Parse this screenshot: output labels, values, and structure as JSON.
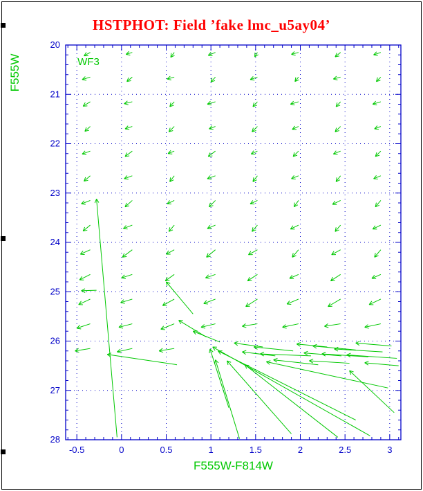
{
  "window": {
    "title": "HSTPHOT: Field ’fake lmc_u5ay04’",
    "title_color": "#ff0000"
  },
  "chart_data": {
    "type": "scatter",
    "subtype": "quiver-vector-field",
    "title": "HSTPHOT: Field ’fake lmc_u5ay04’",
    "xlabel": "F555W-F814W",
    "ylabel": "F555W",
    "annotation": {
      "text": "WF3",
      "x": -0.5,
      "y": 20.35
    },
    "xlim": [
      -0.625,
      3.125
    ],
    "ylim": [
      20,
      28
    ],
    "y_axis_inverted": true,
    "grid": "dotted",
    "x_ticks": [
      -0.5,
      0,
      0.5,
      1,
      1.5,
      2,
      2.5,
      3
    ],
    "x_tick_labels": [
      "-0.5",
      "0",
      "0.5",
      "1",
      "1.5",
      "2",
      "2.5",
      "3"
    ],
    "y_ticks": [
      20,
      21,
      22,
      23,
      24,
      25,
      26,
      27,
      28
    ],
    "y_tick_labels": [
      "20",
      "21",
      "22",
      "23",
      "24",
      "25",
      "26",
      "27",
      "28"
    ],
    "x_minor_step": 0.1,
    "y_minor_step": 0.2,
    "grid_x": [
      -0.5,
      0,
      0.5,
      1,
      1.5,
      2,
      2.5,
      3
    ],
    "grid_y": [
      21,
      22,
      23,
      24,
      25,
      26,
      27
    ],
    "colors": {
      "axis": "#0000c8",
      "grid": "#0000c8",
      "tick_labels": "#0000c8",
      "axis_titles": "#00c800",
      "arrows": "#00c800",
      "title": "#ff0000"
    },
    "arrows": [
      [
        -0.35,
        20.15,
        -0.42,
        20.22
      ],
      [
        0.12,
        20.15,
        0.05,
        20.19
      ],
      [
        0.59,
        20.15,
        0.55,
        20.25
      ],
      [
        1.05,
        20.15,
        0.97,
        20.21
      ],
      [
        1.52,
        20.15,
        1.49,
        20.24
      ],
      [
        1.98,
        20.15,
        1.9,
        20.19
      ],
      [
        2.45,
        20.15,
        2.39,
        20.24
      ],
      [
        2.9,
        20.15,
        2.82,
        20.2
      ],
      [
        -0.35,
        20.65,
        -0.44,
        20.7
      ],
      [
        0.12,
        20.65,
        0.06,
        20.74
      ],
      [
        0.59,
        20.65,
        0.51,
        20.69
      ],
      [
        1.05,
        20.65,
        1.0,
        20.75
      ],
      [
        1.52,
        20.65,
        1.44,
        20.7
      ],
      [
        1.98,
        20.65,
        1.94,
        20.74
      ],
      [
        2.45,
        20.65,
        2.37,
        20.69
      ],
      [
        2.9,
        20.65,
        2.85,
        20.74
      ],
      [
        -0.35,
        21.15,
        -0.43,
        21.24
      ],
      [
        0.12,
        21.15,
        0.03,
        21.19
      ],
      [
        0.59,
        21.15,
        0.54,
        21.25
      ],
      [
        1.05,
        21.15,
        0.96,
        21.2
      ],
      [
        1.52,
        21.15,
        1.47,
        21.25
      ],
      [
        1.98,
        21.15,
        1.89,
        21.2
      ],
      [
        2.45,
        21.15,
        2.4,
        21.25
      ],
      [
        2.9,
        21.15,
        2.81,
        21.2
      ],
      [
        -0.35,
        21.65,
        -0.41,
        21.75
      ],
      [
        0.12,
        21.65,
        0.04,
        21.7
      ],
      [
        0.59,
        21.65,
        0.53,
        21.76
      ],
      [
        1.05,
        21.65,
        0.98,
        21.7
      ],
      [
        1.52,
        21.65,
        1.46,
        21.76
      ],
      [
        1.98,
        21.65,
        1.91,
        21.71
      ],
      [
        2.45,
        21.65,
        2.39,
        21.76
      ],
      [
        2.9,
        21.65,
        2.83,
        21.7
      ],
      [
        -0.35,
        22.15,
        -0.44,
        22.21
      ],
      [
        0.12,
        22.15,
        0.04,
        22.26
      ],
      [
        0.59,
        22.15,
        0.52,
        22.2
      ],
      [
        1.05,
        22.15,
        0.97,
        22.26
      ],
      [
        1.52,
        22.15,
        1.45,
        22.21
      ],
      [
        1.98,
        22.15,
        1.92,
        22.26
      ],
      [
        2.45,
        22.15,
        2.37,
        22.21
      ],
      [
        2.9,
        22.15,
        2.84,
        22.26
      ],
      [
        -0.35,
        22.65,
        -0.42,
        22.76
      ],
      [
        0.12,
        22.65,
        0.03,
        22.71
      ],
      [
        0.59,
        22.65,
        0.54,
        22.77
      ],
      [
        1.05,
        22.65,
        0.96,
        22.71
      ],
      [
        1.52,
        22.65,
        1.47,
        22.77
      ],
      [
        1.98,
        22.65,
        1.9,
        22.71
      ],
      [
        2.45,
        22.65,
        2.4,
        22.77
      ],
      [
        2.9,
        22.65,
        2.82,
        22.71
      ],
      [
        -0.35,
        23.15,
        -0.45,
        23.22
      ],
      [
        0.12,
        23.15,
        0.04,
        23.28
      ],
      [
        0.59,
        23.15,
        0.51,
        23.22
      ],
      [
        1.05,
        23.15,
        0.98,
        23.28
      ],
      [
        1.52,
        23.15,
        1.44,
        23.22
      ],
      [
        1.98,
        23.15,
        1.93,
        23.28
      ],
      [
        2.45,
        23.15,
        2.36,
        23.23
      ],
      [
        2.9,
        23.15,
        2.84,
        23.28
      ],
      [
        -0.35,
        23.65,
        -0.43,
        23.77
      ],
      [
        0.12,
        23.65,
        0.02,
        23.72
      ],
      [
        0.59,
        23.65,
        0.53,
        23.78
      ],
      [
        1.05,
        23.65,
        0.96,
        23.72
      ],
      [
        1.52,
        23.65,
        1.46,
        23.78
      ],
      [
        1.98,
        23.65,
        1.89,
        23.73
      ],
      [
        2.45,
        23.65,
        2.39,
        23.78
      ],
      [
        2.9,
        23.65,
        2.81,
        23.73
      ],
      [
        -0.35,
        24.15,
        -0.46,
        24.24
      ],
      [
        0.12,
        24.15,
        0.01,
        24.3
      ],
      [
        0.59,
        24.15,
        0.5,
        24.24
      ],
      [
        1.05,
        24.15,
        0.95,
        24.3
      ],
      [
        1.52,
        24.15,
        1.42,
        24.25
      ],
      [
        1.98,
        24.15,
        1.91,
        24.3
      ],
      [
        2.45,
        24.15,
        2.35,
        24.25
      ],
      [
        2.9,
        24.15,
        2.83,
        24.3
      ],
      [
        -0.35,
        24.65,
        -0.47,
        24.76
      ],
      [
        0.12,
        24.65,
        0.0,
        24.72
      ],
      [
        0.59,
        24.65,
        0.49,
        24.78
      ],
      [
        1.05,
        24.65,
        0.94,
        24.72
      ],
      [
        1.52,
        24.65,
        1.41,
        24.78
      ],
      [
        1.98,
        24.65,
        1.88,
        24.73
      ],
      [
        2.45,
        24.65,
        2.34,
        24.78
      ],
      [
        2.9,
        24.65,
        2.8,
        24.73
      ],
      [
        -0.35,
        25.15,
        -0.48,
        25.26
      ],
      [
        0.12,
        25.15,
        -0.01,
        25.22
      ],
      [
        0.59,
        25.15,
        0.46,
        25.28
      ],
      [
        1.05,
        25.15,
        0.92,
        25.24
      ],
      [
        1.52,
        25.15,
        1.39,
        25.3
      ],
      [
        1.98,
        25.15,
        1.85,
        25.25
      ],
      [
        2.45,
        25.15,
        2.31,
        25.3
      ],
      [
        2.9,
        25.15,
        2.77,
        25.26
      ],
      [
        -0.35,
        25.65,
        -0.5,
        25.74
      ],
      [
        0.12,
        25.65,
        -0.03,
        25.72
      ],
      [
        0.59,
        25.65,
        0.44,
        25.76
      ],
      [
        1.05,
        25.65,
        0.89,
        25.72
      ],
      [
        1.52,
        25.65,
        1.35,
        25.7
      ],
      [
        1.98,
        25.65,
        1.8,
        25.72
      ],
      [
        2.45,
        25.65,
        2.27,
        25.7
      ],
      [
        2.9,
        25.65,
        2.72,
        25.72
      ],
      [
        -0.35,
        26.15,
        -0.52,
        26.2
      ],
      [
        0.12,
        26.15,
        -0.05,
        26.22
      ],
      [
        0.59,
        26.15,
        0.42,
        26.2
      ],
      [
        -0.05,
        27.95,
        -0.28,
        23.12
      ],
      [
        0.62,
        26.48,
        -0.16,
        26.27
      ],
      [
        2.78,
        27.92,
        1.02,
        26.12
      ],
      [
        2.62,
        27.6,
        1.08,
        26.2
      ],
      [
        1.9,
        27.88,
        1.18,
        26.4
      ],
      [
        1.32,
        27.98,
        1.05,
        26.38
      ],
      [
        1.2,
        27.35,
        0.99,
        26.16
      ],
      [
        2.98,
        26.95,
        1.62,
        26.42
      ],
      [
        2.42,
        27.95,
        1.38,
        26.48
      ],
      [
        3.05,
        27.45,
        2.55,
        26.6
      ],
      [
        0.8,
        25.45,
        0.5,
        24.8
      ],
      [
        0.95,
        25.92,
        0.64,
        25.58
      ],
      [
        1.1,
        26.02,
        0.8,
        25.8
      ],
      [
        -0.28,
        24.97,
        -0.45,
        24.98
      ],
      [
        1.58,
        26.12,
        1.26,
        26.04
      ],
      [
        1.72,
        26.3,
        1.35,
        26.22
      ],
      [
        1.92,
        26.2,
        1.48,
        26.12
      ],
      [
        2.12,
        26.3,
        1.55,
        26.26
      ],
      [
        2.3,
        26.12,
        1.96,
        26.06
      ],
      [
        2.46,
        26.3,
        2.04,
        26.24
      ],
      [
        2.62,
        26.18,
        2.14,
        26.1
      ],
      [
        2.76,
        26.32,
        2.24,
        26.26
      ],
      [
        2.92,
        26.22,
        2.38,
        26.16
      ],
      [
        3.08,
        26.35,
        2.52,
        26.28
      ],
      [
        3.02,
        26.1,
        2.62,
        26.04
      ],
      [
        2.2,
        26.48,
        1.7,
        26.38
      ],
      [
        2.55,
        26.45,
        2.1,
        26.4
      ],
      [
        3.1,
        26.5,
        2.72,
        26.44
      ]
    ]
  }
}
